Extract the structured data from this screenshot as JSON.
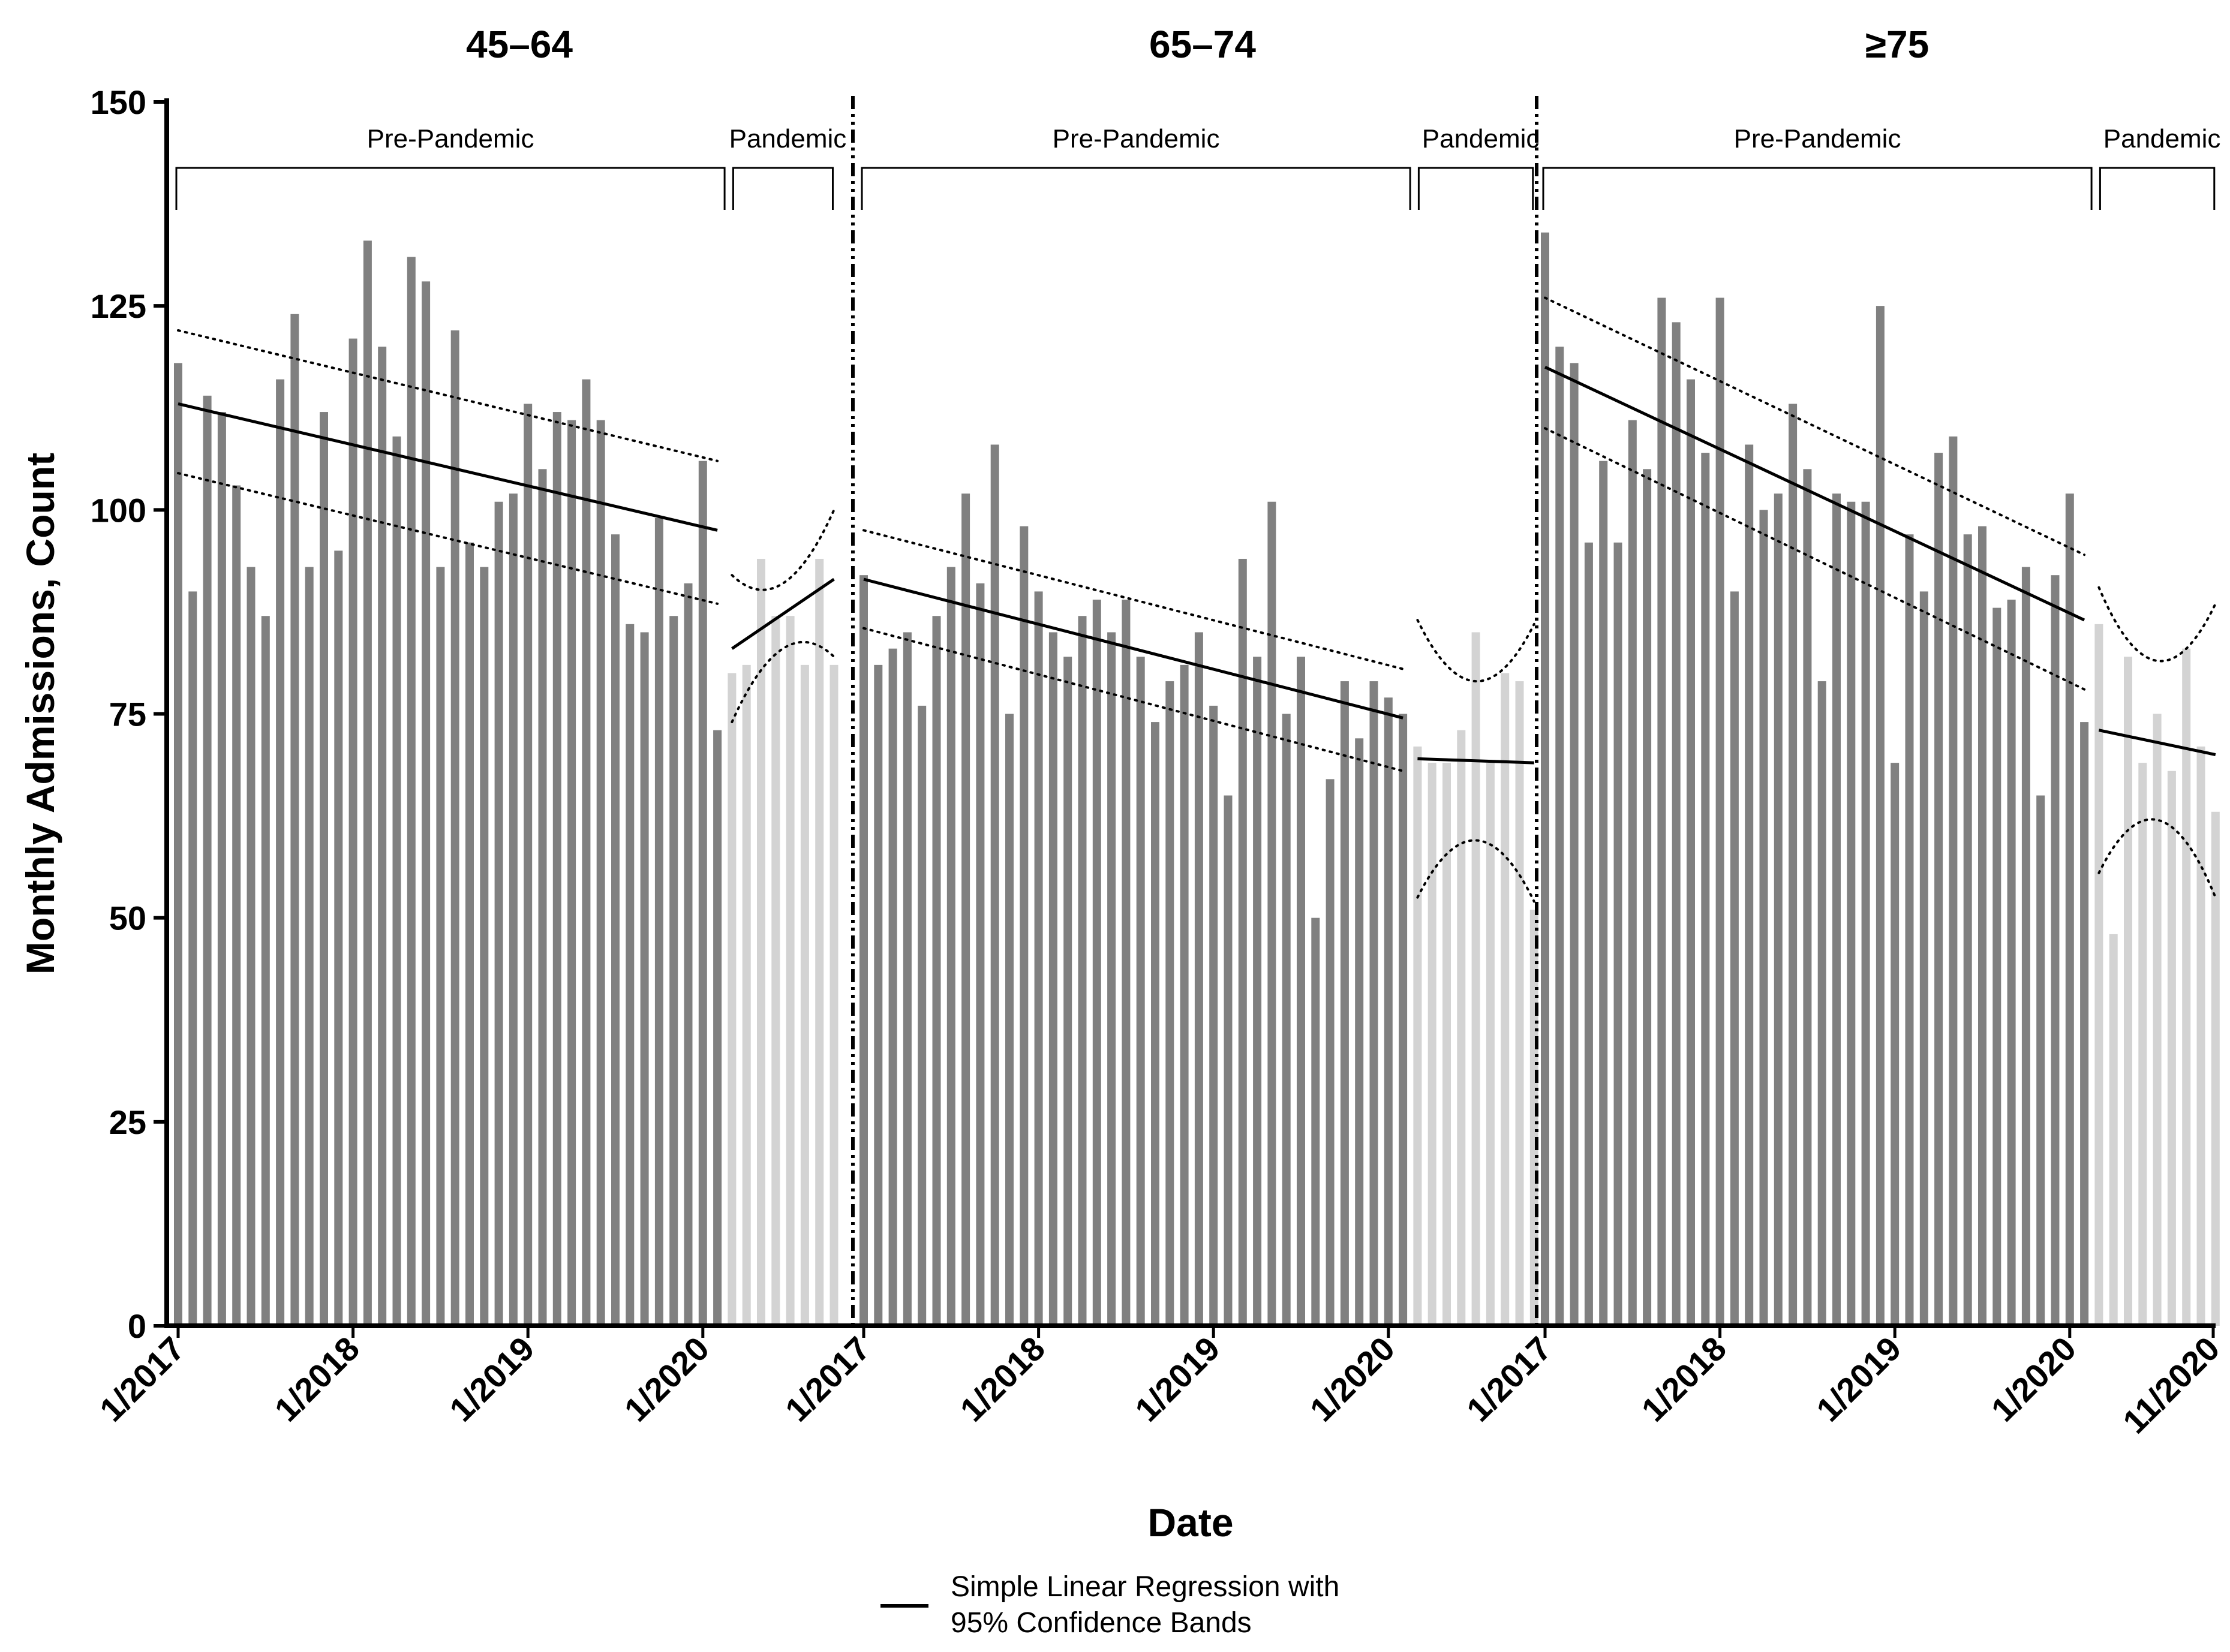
{
  "chart_data": {
    "type": "bar",
    "xlabel": "Date",
    "ylabel": "Monthly Admissions,  Count",
    "ylim": [
      0,
      150
    ],
    "yticks": [
      0,
      25,
      50,
      75,
      100,
      125,
      150
    ],
    "period_labels": {
      "pre": "Pre-Pandemic",
      "pandemic": "Pandemic"
    },
    "colors": {
      "pre_bar": "#808080",
      "pandemic_bar": "#d3d3d3",
      "line": "#000000",
      "axis": "#000000"
    },
    "legend": {
      "line1": "Simple Linear Regression with",
      "line2": "95% Confidence Bands"
    },
    "panels": [
      {
        "title": "45–64",
        "pre_values": [
          118,
          90,
          114,
          112,
          103,
          93,
          87,
          116,
          124,
          93,
          112,
          95,
          121,
          133,
          120,
          109,
          131,
          128,
          93,
          122,
          96,
          93,
          101,
          102,
          113,
          105,
          112,
          111,
          116,
          111,
          97,
          86,
          85,
          99,
          87,
          91,
          106,
          73
        ],
        "pandemic_values": [
          80,
          81,
          94,
          87,
          87,
          81,
          94,
          81
        ],
        "pre_fit": [
          113,
          97.5
        ],
        "pre_ci_upper": [
          122,
          106
        ],
        "pre_ci_lower": [
          104.5,
          88.5
        ],
        "pan_fit": [
          83,
          91.5
        ],
        "pan_ci_upper": [
          92,
          91,
          100
        ],
        "pan_ci_lower": [
          74,
          83,
          82
        ],
        "x_tick_labels": [
          "1/2017",
          "1/2018",
          "1/2019",
          "1/2020"
        ]
      },
      {
        "title": "65–74",
        "pre_values": [
          92,
          81,
          83,
          85,
          76,
          87,
          93,
          102,
          91,
          108,
          75,
          98,
          90,
          85,
          82,
          87,
          89,
          85,
          89,
          82,
          74,
          79,
          81,
          85,
          76,
          65,
          94,
          82,
          101,
          75,
          82,
          50,
          67,
          79,
          72,
          79,
          77,
          75
        ],
        "pandemic_values": [
          71,
          69,
          69,
          73,
          85,
          69,
          80,
          79,
          51
        ],
        "pre_fit": [
          91.5,
          74.5
        ],
        "pre_ci_upper": [
          97.5,
          80.5
        ],
        "pre_ci_lower": [
          85.5,
          68
        ],
        "pan_fit": [
          69.5,
          69
        ],
        "pan_ci_upper": [
          86.5,
          79,
          86
        ],
        "pan_ci_lower": [
          52.5,
          59.5,
          52
        ],
        "x_tick_labels": [
          "1/2017",
          "1/2018",
          "1/2019",
          "1/2020"
        ]
      },
      {
        "title": "≥75",
        "pre_values": [
          134,
          120,
          118,
          96,
          106,
          96,
          111,
          105,
          126,
          123,
          116,
          107,
          126,
          90,
          108,
          100,
          102,
          113,
          105,
          79,
          102,
          101,
          101,
          125,
          69,
          97,
          90,
          107,
          109,
          97,
          98,
          88,
          89,
          93,
          65,
          92,
          102,
          74
        ],
        "pandemic_values": [
          86,
          48,
          82,
          69,
          75,
          68,
          83,
          71,
          63
        ],
        "pre_fit": [
          117.5,
          86.5
        ],
        "pre_ci_upper": [
          126,
          94.5
        ],
        "pre_ci_lower": [
          110,
          78
        ],
        "pan_fit": [
          73,
          70
        ],
        "pan_ci_upper": [
          90.5,
          81.5,
          88.5
        ],
        "pan_ci_lower": [
          55.5,
          62,
          52.5
        ],
        "x_tick_labels": [
          "1/2017",
          "1/2018",
          "1/2019",
          "1/2020",
          "11/2020"
        ]
      }
    ],
    "first_x_tick_labels": [
      "1/2017",
      "1/2017",
      "1/2017"
    ]
  }
}
